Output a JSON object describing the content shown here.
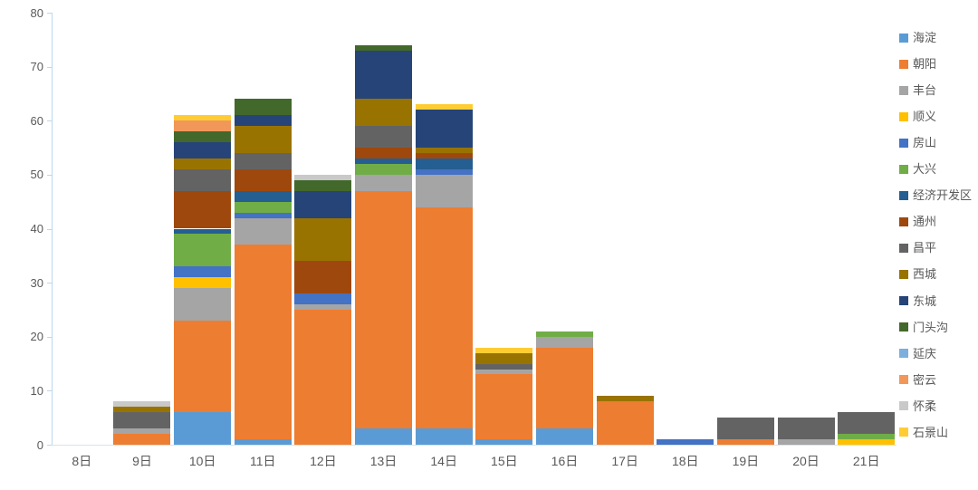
{
  "chart_data": {
    "type": "bar",
    "stacked": true,
    "title": "",
    "xlabel": "",
    "ylabel": "",
    "categories": [
      "8日",
      "9日",
      "10日",
      "11日",
      "12日",
      "13日",
      "14日",
      "15日",
      "16日",
      "17日",
      "18日",
      "19日",
      "20日",
      "21日"
    ],
    "series": [
      {
        "name": "海淀",
        "color": "#5B9BD5",
        "values": [
          0,
          0,
          6,
          1,
          0,
          3,
          3,
          1,
          3,
          0,
          0,
          0,
          0,
          0
        ]
      },
      {
        "name": "朝阳",
        "color": "#ED7D31",
        "values": [
          0,
          2,
          17,
          36,
          25,
          44,
          41,
          12,
          15,
          8,
          0,
          1,
          0,
          0
        ]
      },
      {
        "name": "丰台",
        "color": "#A5A5A5",
        "values": [
          0,
          1,
          6,
          5,
          1,
          3,
          6,
          1,
          2,
          0,
          0,
          0,
          1,
          0
        ]
      },
      {
        "name": "顺义",
        "color": "#FFC000",
        "values": [
          0,
          0,
          2,
          0,
          0,
          0,
          0,
          0,
          0,
          0,
          0,
          0,
          0,
          1
        ]
      },
      {
        "name": "房山",
        "color": "#4472C4",
        "values": [
          0,
          0,
          2,
          1,
          2,
          0,
          1,
          0,
          0,
          0,
          1,
          0,
          0,
          0
        ]
      },
      {
        "name": "大兴",
        "color": "#70AD47",
        "values": [
          0,
          0,
          6,
          2,
          0,
          2,
          0,
          0,
          1,
          0,
          0,
          0,
          0,
          1
        ]
      },
      {
        "name": "经济开发区",
        "color": "#255E91",
        "values": [
          0,
          0,
          1,
          2,
          0,
          1,
          2,
          0,
          0,
          0,
          0,
          0,
          0,
          0
        ]
      },
      {
        "name": "通州",
        "color": "#9E480E",
        "values": [
          0,
          0,
          7,
          4,
          6,
          2,
          1,
          0,
          0,
          0,
          0,
          0,
          0,
          0
        ]
      },
      {
        "name": "昌平",
        "color": "#636363",
        "values": [
          0,
          3,
          4,
          3,
          0,
          4,
          0,
          1,
          0,
          0,
          0,
          4,
          4,
          4
        ]
      },
      {
        "name": "西城",
        "color": "#997300",
        "values": [
          0,
          1,
          2,
          5,
          8,
          5,
          1,
          2,
          0,
          1,
          0,
          0,
          0,
          0
        ]
      },
      {
        "name": "东城",
        "color": "#264478",
        "values": [
          0,
          0,
          3,
          2,
          5,
          9,
          7,
          0,
          0,
          0,
          0,
          0,
          0,
          0
        ]
      },
      {
        "name": "门头沟",
        "color": "#43682B",
        "values": [
          0,
          0,
          2,
          3,
          2,
          1,
          0,
          0,
          0,
          0,
          0,
          0,
          0,
          0
        ]
      },
      {
        "name": "延庆",
        "color": "#7CAFDD",
        "values": [
          0,
          0,
          0,
          0,
          0,
          0,
          0,
          0,
          0,
          0,
          0,
          0,
          0,
          0
        ]
      },
      {
        "name": "密云",
        "color": "#F1975A",
        "values": [
          0,
          0,
          2,
          0,
          0,
          0,
          0,
          0,
          0,
          0,
          0,
          0,
          0,
          0
        ]
      },
      {
        "name": "怀柔",
        "color": "#C9C9C9",
        "values": [
          0,
          1,
          0,
          0,
          1,
          0,
          0,
          0,
          0,
          0,
          0,
          0,
          0,
          0
        ]
      },
      {
        "name": "石景山",
        "color": "#FFCD33",
        "values": [
          0,
          0,
          1,
          0,
          0,
          0,
          1,
          1,
          0,
          0,
          0,
          0,
          0,
          0
        ]
      }
    ],
    "ylim": [
      0,
      80
    ],
    "yticks": [
      0,
      10,
      20,
      30,
      40,
      50,
      60,
      70,
      80
    ],
    "grid": false,
    "legend_position": "right",
    "axis_color": "#BDD7EE",
    "label_color": "#595959"
  }
}
